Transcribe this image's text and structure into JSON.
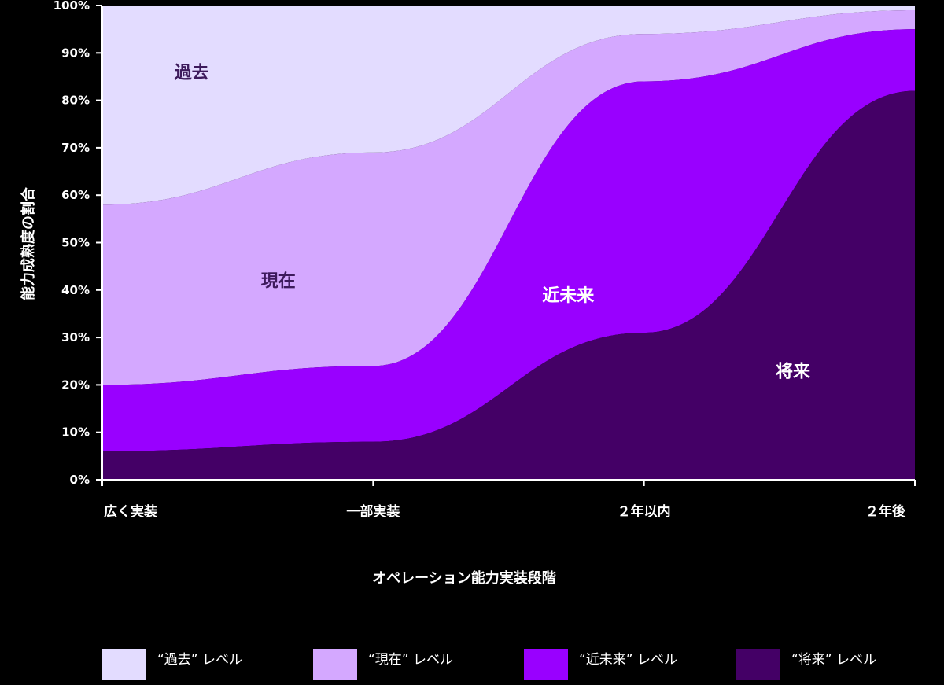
{
  "chart_data": {
    "type": "area",
    "stacked": true,
    "categories": [
      "広く実装",
      "一部実装",
      "２年以内",
      "２年後"
    ],
    "ylabel": "能力成熟度の割合",
    "xlabel": "オペレーション能力実装段階",
    "ylim": [
      0,
      100
    ],
    "yticks": [
      "0%",
      "10%",
      "20%",
      "30%",
      "40%",
      "50%",
      "60%",
      "70%",
      "80%",
      "90%",
      "100%"
    ],
    "series": [
      {
        "name": "“将来” レベル",
        "label": "将来",
        "color": "#440066",
        "label_color": "#ffffff",
        "values": [
          6,
          8,
          31,
          82
        ]
      },
      {
        "name": "“近未来” レベル",
        "label": "近未来",
        "color": "#9900ff",
        "label_color": "#ffffff",
        "values": [
          14,
          16,
          53,
          13
        ]
      },
      {
        "name": "“現在” レベル",
        "label": "現在",
        "color": "#d4a8ff",
        "label_color": "#3d1a5c",
        "values": [
          38,
          45,
          10,
          4
        ]
      },
      {
        "name": "“過去” レベル",
        "label": "過去",
        "color": "#e3dcff",
        "label_color": "#3d1a5c",
        "values": [
          42,
          31,
          6,
          1
        ]
      }
    ],
    "legend": [
      "“過去” レベル",
      "“現在” レベル",
      "“近未来” レベル",
      "“将来” レベル"
    ],
    "legend_colors": [
      "#e3dcff",
      "#d4a8ff",
      "#9900ff",
      "#440066"
    ],
    "grid": false,
    "legend_position": "bottom"
  }
}
